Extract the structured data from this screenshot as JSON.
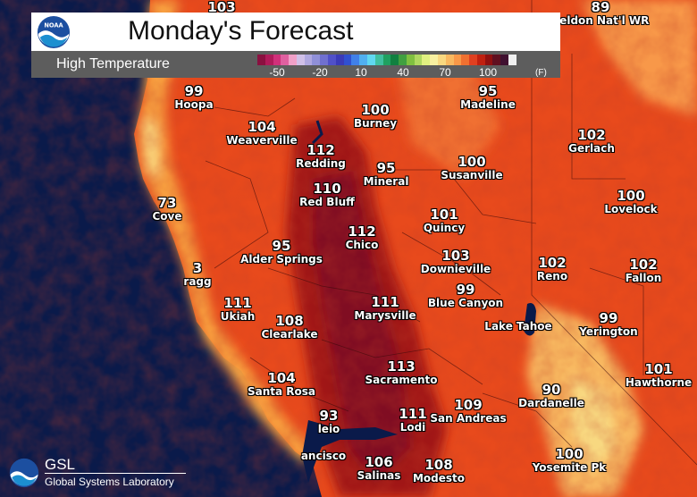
{
  "header": {
    "title": "Monday's Forecast",
    "subtitle": "High Temperature",
    "unit": "(F)",
    "logo_text": "NOAA",
    "legend_ticks": [
      "-50",
      "-20",
      "10",
      "40",
      "70",
      "100"
    ],
    "legend_colors": [
      "#8a1040",
      "#b01a5a",
      "#d0307a",
      "#e060a0",
      "#f0a0c8",
      "#d0c0e8",
      "#b0a8e0",
      "#9090d8",
      "#7070d0",
      "#5050c8",
      "#3a3ab8",
      "#3050d0",
      "#4080e8",
      "#50b0f0",
      "#60d8f0",
      "#40c0a0",
      "#20a060",
      "#108040",
      "#40a040",
      "#80c040",
      "#b0d860",
      "#e0f080",
      "#f8f0a0",
      "#f8d880",
      "#f8b860",
      "#f89848",
      "#f07030",
      "#e04020",
      "#c02010",
      "#901010",
      "#601020",
      "#401030",
      "#f0f0f0"
    ]
  },
  "cities": [
    {
      "temp": "103",
      "name": ""
    },
    {
      "temp": "89",
      "name": "heldon Nat'l WR"
    },
    {
      "temp": "99",
      "name": "Hoopa"
    },
    {
      "temp": "104",
      "name": "Weaverville"
    },
    {
      "temp": "100",
      "name": "Burney"
    },
    {
      "temp": "95",
      "name": "Madeline"
    },
    {
      "temp": "112",
      "name": "Redding"
    },
    {
      "temp": "95",
      "name": "Mineral"
    },
    {
      "temp": "100",
      "name": "Susanville"
    },
    {
      "temp": "102",
      "name": "Gerlach"
    },
    {
      "temp": "110",
      "name": "Red Bluff"
    },
    {
      "temp": "73",
      "name": "Cove"
    },
    {
      "temp": "101",
      "name": "Quincy"
    },
    {
      "temp": "100",
      "name": "Lovelock"
    },
    {
      "temp": "112",
      "name": "Chico"
    },
    {
      "temp": "95",
      "name": "Alder Springs"
    },
    {
      "temp": "103",
      "name": "Downieville"
    },
    {
      "temp": "102",
      "name": "Reno"
    },
    {
      "temp": "102",
      "name": "Fallon"
    },
    {
      "temp": "3",
      "name": "ragg"
    },
    {
      "temp": "111",
      "name": "Ukiah"
    },
    {
      "temp": "111",
      "name": "Marysville"
    },
    {
      "temp": "99",
      "name": "Blue Canyon"
    },
    {
      "temp": "108",
      "name": "Clearlake"
    },
    {
      "temp": "99",
      "name": "Yerington"
    },
    {
      "temp": "",
      "name": "Lake Tahoe"
    },
    {
      "temp": "113",
      "name": "Sacramento"
    },
    {
      "temp": "101",
      "name": "Hawthorne"
    },
    {
      "temp": "104",
      "name": "Santa Rosa"
    },
    {
      "temp": "90",
      "name": "Dardanelle"
    },
    {
      "temp": "109",
      "name": "San Andreas"
    },
    {
      "temp": "93",
      "name": "leio"
    },
    {
      "temp": "111",
      "name": "Lodi"
    },
    {
      "temp": "106",
      "name": "Salinas"
    },
    {
      "temp": "108",
      "name": "Modesto"
    },
    {
      "temp": "",
      "name": "ancisco"
    },
    {
      "temp": "100",
      "name": "Yosemite Pk"
    }
  ],
  "footer": {
    "org_short": "GSL",
    "org_full": "Global Systems Laboratory"
  }
}
